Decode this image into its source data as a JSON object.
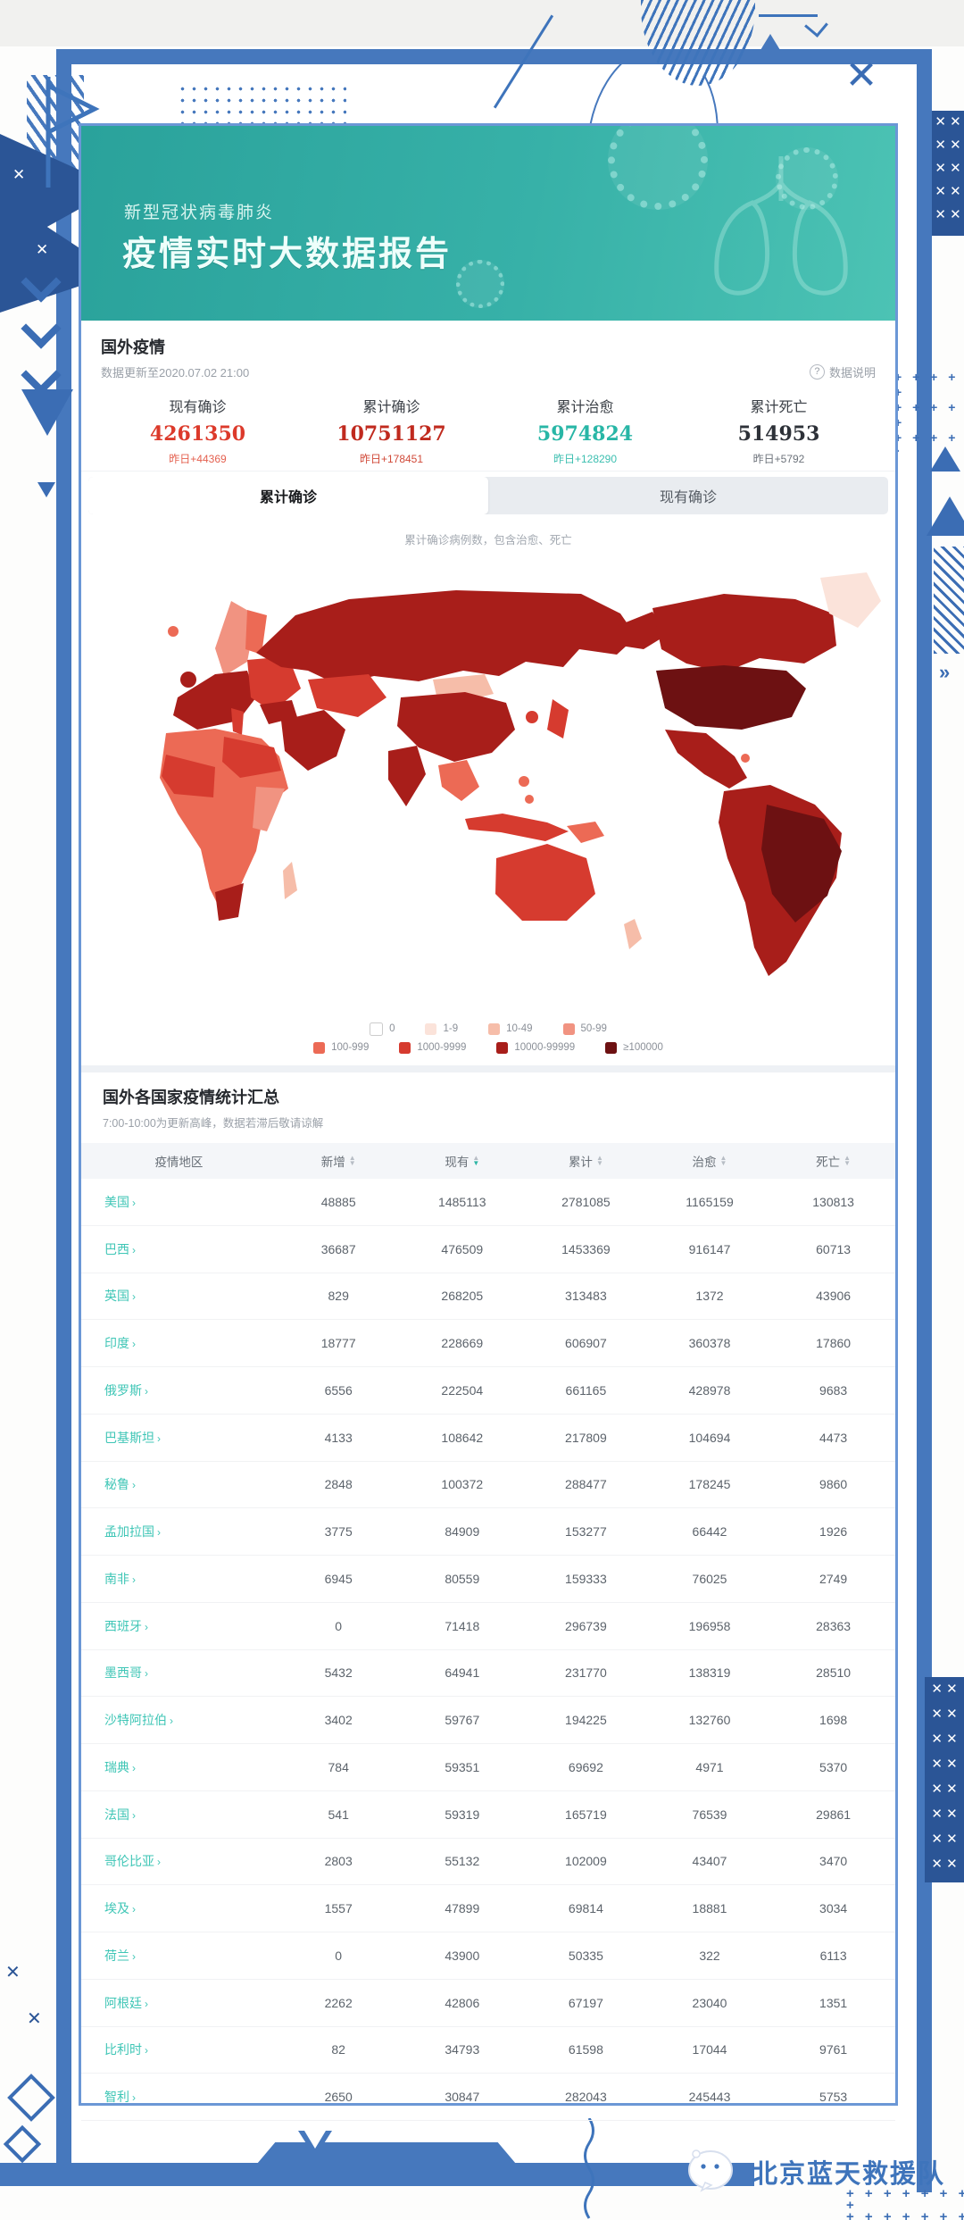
{
  "window": {
    "close_glyph": "✕"
  },
  "icons": {
    "question": "?",
    "chevron_right": "›",
    "sort_up": "▲",
    "sort_down": "▼",
    "x_mark": "✕",
    "plus": "+",
    "arrow_right": "»"
  },
  "header": {
    "subtitle": "新型冠状病毒肺炎",
    "title": "疫情实时大数据报告"
  },
  "overview": {
    "title": "国外疫情",
    "updated": "数据更新至2020.07.02 21:00",
    "data_note": "数据说明",
    "stats": [
      {
        "label": "现有确诊",
        "value": "4261350",
        "delta": "昨日+44369",
        "value_color": "#dc3a2b",
        "delta_color": "#e4604f"
      },
      {
        "label": "累计确诊",
        "value": "10751127",
        "delta": "昨日+178451",
        "value_color": "#c02a1e",
        "delta_color": "#d14a39"
      },
      {
        "label": "累计治愈",
        "value": "5974824",
        "delta": "昨日+128290",
        "value_color": "#28b6a6",
        "delta_color": "#3cbfb0"
      },
      {
        "label": "累计死亡",
        "value": "514953",
        "delta": "昨日+5792",
        "value_color": "#2d3138",
        "delta_color": "#6d737b"
      }
    ]
  },
  "tabs": {
    "items": [
      {
        "label": "累计确诊",
        "active": true
      },
      {
        "label": "现有确诊",
        "active": false
      }
    ],
    "caption": "累计确诊病例数，包含治愈、死亡"
  },
  "map": {
    "legend_rows": [
      [
        {
          "label": "0",
          "color": "#ffffff",
          "border": "#cccccc"
        },
        {
          "label": "1-9",
          "color": "#fbe3da"
        },
        {
          "label": "10-49",
          "color": "#f6bda9"
        },
        {
          "label": "50-99",
          "color": "#f19381"
        }
      ],
      [
        {
          "label": "100-999",
          "color": "#ec6a55"
        },
        {
          "label": "1000-9999",
          "color": "#d63b2f"
        },
        {
          "label": "10000-99999",
          "color": "#a81e1a"
        },
        {
          "label": "≥100000",
          "color": "#6d1112"
        }
      ]
    ]
  },
  "table": {
    "title": "国外各国家疫情统计汇总",
    "subtitle": "7:00-10:00为更新高峰，数据若滞后敬请谅解",
    "columns": [
      "疫情地区",
      "新增",
      "现有",
      "累计",
      "治愈",
      "死亡"
    ],
    "sort": {
      "active_column": "现有",
      "direction": "desc"
    },
    "rows": [
      [
        "美国",
        "48885",
        "1485113",
        "2781085",
        "1165159",
        "130813"
      ],
      [
        "巴西",
        "36687",
        "476509",
        "1453369",
        "916147",
        "60713"
      ],
      [
        "英国",
        "829",
        "268205",
        "313483",
        "1372",
        "43906"
      ],
      [
        "印度",
        "18777",
        "228669",
        "606907",
        "360378",
        "17860"
      ],
      [
        "俄罗斯",
        "6556",
        "222504",
        "661165",
        "428978",
        "9683"
      ],
      [
        "巴基斯坦",
        "4133",
        "108642",
        "217809",
        "104694",
        "4473"
      ],
      [
        "秘鲁",
        "2848",
        "100372",
        "288477",
        "178245",
        "9860"
      ],
      [
        "孟加拉国",
        "3775",
        "84909",
        "153277",
        "66442",
        "1926"
      ],
      [
        "南非",
        "6945",
        "80559",
        "159333",
        "76025",
        "2749"
      ],
      [
        "西班牙",
        "0",
        "71418",
        "296739",
        "196958",
        "28363"
      ],
      [
        "墨西哥",
        "5432",
        "64941",
        "231770",
        "138319",
        "28510"
      ],
      [
        "沙特阿拉伯",
        "3402",
        "59767",
        "194225",
        "132760",
        "1698"
      ],
      [
        "瑞典",
        "784",
        "59351",
        "69692",
        "4971",
        "5370"
      ],
      [
        "法国",
        "541",
        "59319",
        "165719",
        "76539",
        "29861"
      ],
      [
        "哥伦比亚",
        "2803",
        "55132",
        "102009",
        "43407",
        "3470"
      ],
      [
        "埃及",
        "1557",
        "47899",
        "69814",
        "18881",
        "3034"
      ],
      [
        "荷兰",
        "0",
        "43900",
        "50335",
        "322",
        "6113"
      ],
      [
        "阿根廷",
        "2262",
        "42806",
        "67197",
        "23040",
        "1351"
      ],
      [
        "比利时",
        "82",
        "34793",
        "61598",
        "17044",
        "9761"
      ],
      [
        "智利",
        "2650",
        "30847",
        "282043",
        "245443",
        "5753"
      ]
    ]
  },
  "footer": {
    "watermark": "北京蓝天救援队"
  }
}
